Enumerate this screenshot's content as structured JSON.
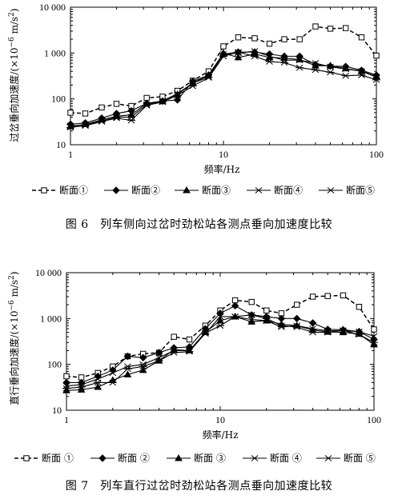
{
  "charts": [
    {
      "ylabel_prefix": "过岔垂向加速度/(×10",
      "ylabel_exp": "−6",
      "ylabel_suffix": " m/s",
      "ylabel_sq": "2",
      "ylabel_close": ")",
      "xlabel": "频率/Hz",
      "caption": "图 6　列车侧向过岔时劲松站各测点垂向加速度比较"
    },
    {
      "ylabel_prefix": "直行垂向加速度/(×10",
      "ylabel_exp": "−6",
      "ylabel_suffix": " m/s",
      "ylabel_sq": "2",
      "ylabel_close": ")",
      "xlabel": "频率/Hz",
      "caption": "图 7　列车直行过岔时劲松站各测点垂向加速度比较"
    }
  ],
  "chart_data": [
    {
      "type": "line",
      "xscale": "log",
      "yscale": "log",
      "xlim": [
        1,
        100
      ],
      "ylim": [
        10,
        10000
      ],
      "xticks": [
        1,
        10,
        100
      ],
      "xtick_labels": [
        "1",
        "10",
        "100"
      ],
      "yticks": [
        10,
        100,
        1000,
        10000
      ],
      "ytick_labels": [
        "10",
        "100",
        "1 000",
        "10 000"
      ],
      "grid": false,
      "legend_position": "bottom",
      "x": [
        1,
        1.25,
        1.6,
        2,
        2.5,
        3.15,
        4,
        5,
        6.3,
        8,
        10,
        12.5,
        16,
        20,
        25,
        31.5,
        40,
        50,
        63,
        80,
        100
      ],
      "series": [
        {
          "name": "断面①",
          "marker": "square",
          "dash": true,
          "values": [
            50,
            48,
            65,
            78,
            70,
            105,
            112,
            150,
            250,
            400,
            1400,
            2200,
            2100,
            1600,
            2000,
            2000,
            3800,
            3400,
            3500,
            2200,
            880
          ]
        },
        {
          "name": "断面②",
          "marker": "diamond",
          "dash": false,
          "values": [
            28,
            30,
            38,
            48,
            55,
            80,
            90,
            95,
            240,
            330,
            950,
            1050,
            1050,
            950,
            850,
            850,
            560,
            520,
            510,
            420,
            330
          ]
        },
        {
          "name": "断面③",
          "marker": "triangle",
          "dash": false,
          "values": [
            25,
            28,
            35,
            42,
            45,
            80,
            88,
            125,
            220,
            330,
            1000,
            800,
            950,
            800,
            780,
            720,
            530,
            530,
            460,
            400,
            310
          ]
        },
        {
          "name": "断面④",
          "marker": "x",
          "dash": false,
          "values": [
            26,
            27,
            33,
            40,
            40,
            75,
            90,
            130,
            220,
            300,
            950,
            1000,
            1100,
            850,
            700,
            700,
            600,
            500,
            450,
            400,
            300
          ]
        },
        {
          "name": "断面⑤",
          "marker": "star",
          "dash": false,
          "values": [
            24,
            26,
            32,
            38,
            34,
            72,
            86,
            120,
            190,
            290,
            850,
            1050,
            850,
            650,
            620,
            480,
            430,
            380,
            320,
            330,
            260
          ]
        }
      ]
    },
    {
      "type": "line",
      "xscale": "log",
      "yscale": "log",
      "xlim": [
        1,
        100
      ],
      "ylim": [
        10,
        10000
      ],
      "xticks": [
        1,
        10,
        100
      ],
      "xtick_labels": [
        "1",
        "10",
        "100"
      ],
      "yticks": [
        10,
        100,
        1000,
        10000
      ],
      "ytick_labels": [
        "10",
        "100",
        "1 000",
        "10 000"
      ],
      "grid": false,
      "legend_position": "bottom",
      "x": [
        1,
        1.25,
        1.6,
        2,
        2.5,
        3.15,
        4,
        5,
        6.3,
        8,
        10,
        12.5,
        16,
        20,
        25,
        31.5,
        40,
        50,
        63,
        80,
        100
      ],
      "series": [
        {
          "name": "断面 ①",
          "marker": "square",
          "dash": true,
          "values": [
            55,
            52,
            65,
            90,
            150,
            170,
            180,
            400,
            350,
            700,
            1500,
            2500,
            2300,
            1500,
            1300,
            2000,
            3000,
            3100,
            3200,
            1800,
            580
          ]
        },
        {
          "name": "断面 ②",
          "marker": "diamond",
          "dash": false,
          "values": [
            40,
            40,
            55,
            75,
            150,
            140,
            180,
            230,
            240,
            600,
            1300,
            1900,
            1200,
            1100,
            1000,
            1000,
            800,
            580,
            570,
            520,
            350
          ]
        },
        {
          "name": "断面 ③",
          "marker": "triangle",
          "dash": false,
          "values": [
            27,
            28,
            32,
            45,
            60,
            75,
            120,
            210,
            200,
            500,
            900,
            1100,
            850,
            900,
            750,
            700,
            560,
            510,
            500,
            460,
            270
          ]
        },
        {
          "name": "断面 ④",
          "marker": "x",
          "dash": false,
          "values": [
            34,
            36,
            48,
            65,
            90,
            100,
            140,
            200,
            200,
            470,
            1100,
            1100,
            950,
            900,
            650,
            700,
            600,
            540,
            540,
            520,
            410
          ]
        },
        {
          "name": "断面 ⑤",
          "marker": "star",
          "dash": false,
          "values": [
            30,
            32,
            40,
            40,
            80,
            90,
            120,
            180,
            190,
            480,
            700,
            1100,
            1200,
            1000,
            700,
            650,
            500,
            500,
            550,
            450,
            300
          ]
        }
      ]
    }
  ]
}
